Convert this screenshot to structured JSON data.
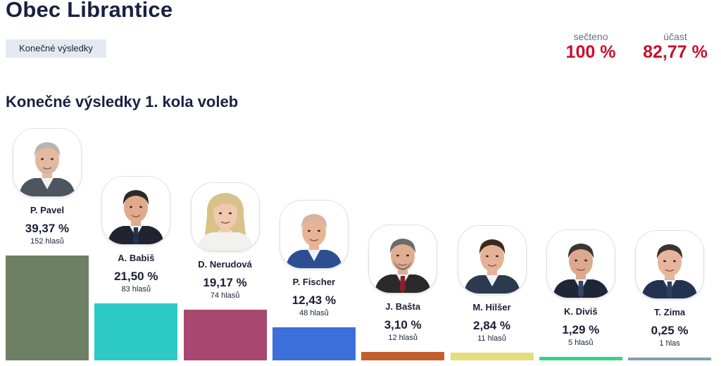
{
  "header": {
    "title": "Obec Librantice",
    "badge": "Konečné výsledky",
    "counted_label": "sečteno",
    "counted_value": "100 %",
    "turnout_label": "účast",
    "turnout_value": "82,77 %"
  },
  "section_title": "Konečné výsledky 1. kola voleb",
  "colors": {
    "accent_red": "#c8102e",
    "title": "#1a2040"
  },
  "chart_data": {
    "type": "bar",
    "title": "Konečné výsledky 1. kola voleb",
    "ylim": [
      0,
      40
    ],
    "categories": [
      "P. Pavel",
      "A. Babiš",
      "D. Nerudová",
      "P. Fischer",
      "J. Bašta",
      "M. Hilšer",
      "K. Diviš",
      "T. Zima"
    ],
    "values": [
      39.37,
      21.5,
      19.17,
      12.43,
      3.1,
      2.84,
      1.29,
      0.25
    ],
    "value_labels": [
      "39,37 %",
      "21,50 %",
      "19,17 %",
      "12,43 %",
      "3,10 %",
      "2,84 %",
      "1,29 %",
      "0,25 %"
    ],
    "votes_labels": [
      "152 hlasů",
      "83 hlasů",
      "74 hlasů",
      "48 hlasů",
      "12 hlasů",
      "11 hlasů",
      "5 hlasů",
      "1 hlas"
    ],
    "colors": [
      "#6e8064",
      "#2ecac8",
      "#a8476f",
      "#3d6fdb",
      "#c25f2c",
      "#e3dd7d",
      "#33d67d",
      "#7f9fb0"
    ],
    "portraits": [
      {
        "icon": "portrait-pavel",
        "hair": "#b8b5ae",
        "skin": "#e5b9a0",
        "suit": "#4d5561",
        "shirt": "#f2f2f2",
        "tie": null,
        "long_hair": false,
        "beard": true
      },
      {
        "icon": "portrait-babis",
        "hair": "#2a2a2a",
        "skin": "#e1aa8c",
        "suit": "#1f2430",
        "shirt": "#f5f5f5",
        "tie": "#25324e",
        "long_hair": false,
        "beard": false
      },
      {
        "icon": "portrait-nerudova",
        "hair": "#d9c28a",
        "skin": "#f1c9b1",
        "suit": "#f3f1ee",
        "shirt": "#f3f1ee",
        "tie": null,
        "long_hair": true,
        "beard": false
      },
      {
        "icon": "portrait-fischer",
        "hair": "#d8b49e",
        "skin": "#e8b497",
        "suit": "#2e4f8f",
        "shirt": "#eef3fa",
        "tie": null,
        "long_hair": false,
        "beard": false
      },
      {
        "icon": "portrait-basta",
        "hair": "#6b6b6b",
        "skin": "#e0ad92",
        "suit": "#2a2a2a",
        "shirt": "#f2f2f2",
        "tie": "#8a1f2a",
        "long_hair": false,
        "beard": true
      },
      {
        "icon": "portrait-hilser",
        "hair": "#3b2a20",
        "skin": "#e4b295",
        "suit": "#2c3a4e",
        "shirt": "#eef3fa",
        "tie": null,
        "long_hair": false,
        "beard": false
      },
      {
        "icon": "portrait-divis",
        "hair": "#3a3530",
        "skin": "#dca98e",
        "suit": "#1f2635",
        "shirt": "#f5f5f5",
        "tie": "#35466a",
        "long_hair": false,
        "beard": false
      },
      {
        "icon": "portrait-zima",
        "hair": "#3a342f",
        "skin": "#e6b59b",
        "suit": "#243252",
        "shirt": "#f5f5f5",
        "tie": "#2d3d62",
        "long_hair": false,
        "beard": false
      }
    ]
  }
}
